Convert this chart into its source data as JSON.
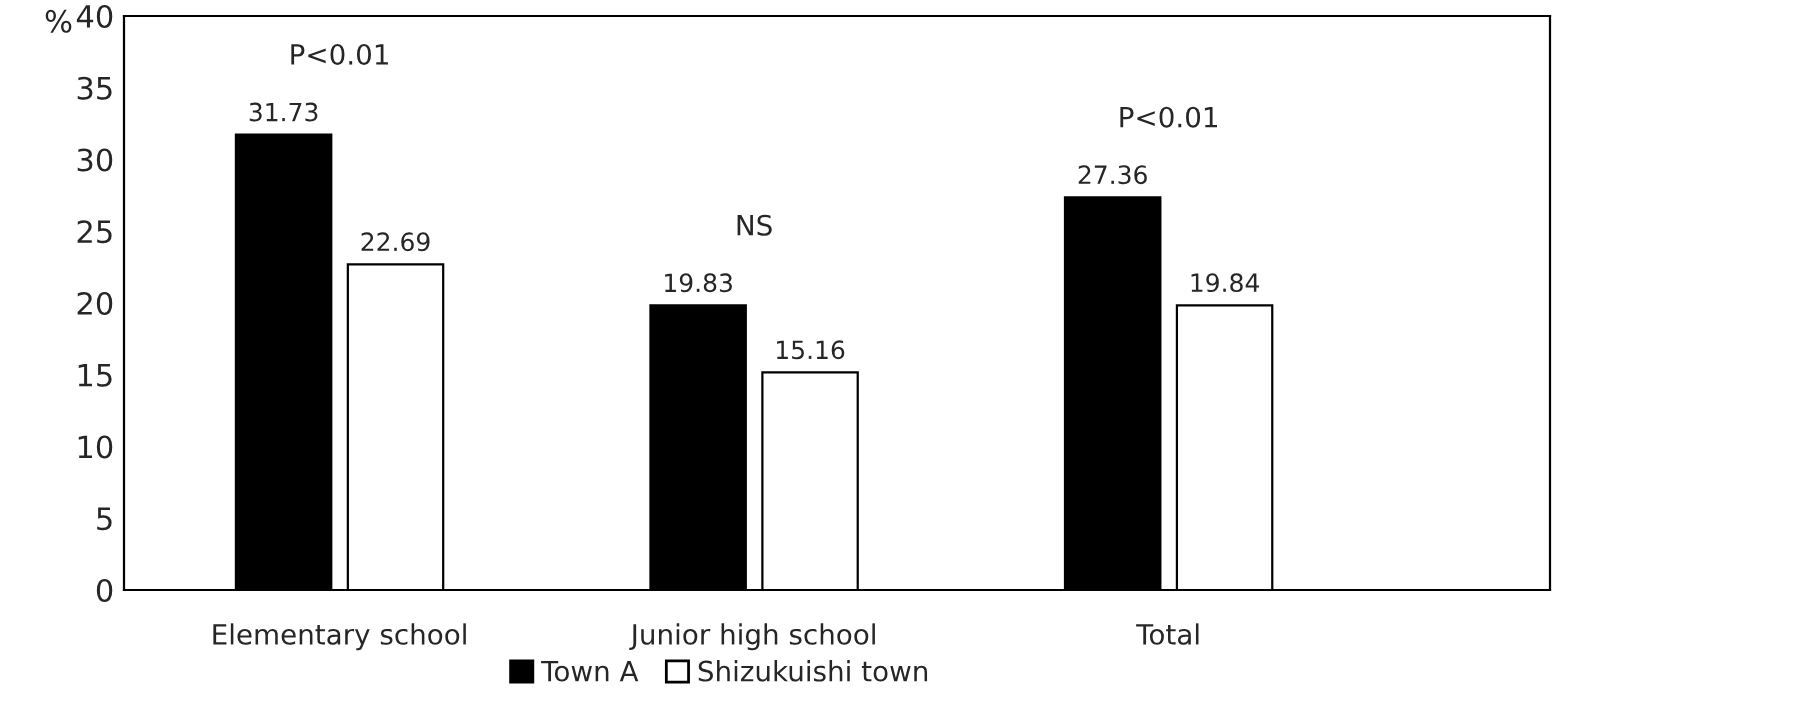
{
  "chart_data": {
    "type": "bar",
    "ylabel": "%",
    "categories": [
      "Elementary school",
      "Junior high school",
      "Total"
    ],
    "series": [
      {
        "name": "Town A",
        "color": "#000000",
        "values": [
          31.73,
          19.83,
          27.36
        ]
      },
      {
        "name": "Shizukuishi town",
        "color": "#ffffff",
        "values": [
          22.69,
          15.16,
          19.84
        ]
      }
    ],
    "ylim": [
      0,
      40
    ],
    "yticks": [
      0,
      5,
      10,
      15,
      20,
      25,
      30,
      35,
      40
    ],
    "data_labels": true,
    "grid": false,
    "legend": "bottom",
    "annotations": [
      "P<0.01",
      "NS",
      "P<0.01"
    ]
  }
}
